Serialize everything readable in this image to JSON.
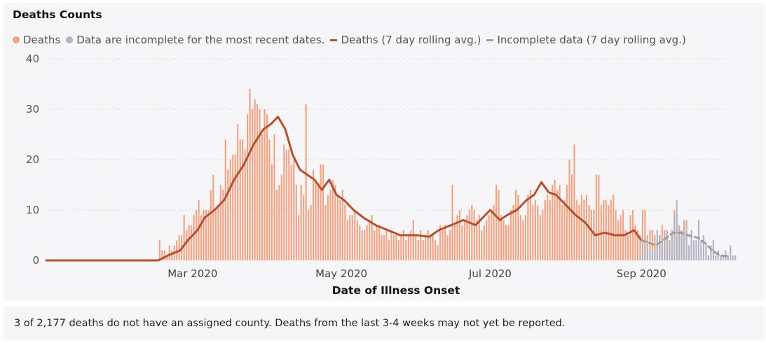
{
  "title": "Deaths Counts",
  "legend": [
    {
      "label": "Deaths",
      "color": "#f0a483",
      "kind": "dot"
    },
    {
      "label": "Data are incomplete for the most recent dates.",
      "color": "#b3b5c6",
      "kind": "dot"
    },
    {
      "label": "Deaths (7 day rolling avg.)",
      "color": "#b5512f",
      "kind": "line"
    },
    {
      "label": "Incomplete data (7 day rolling avg.)",
      "color": "#9e9e9e",
      "kind": "line"
    }
  ],
  "note": "3 of 2,177 deaths do not have an assigned county. Deaths from the last 3-4 weeks may not yet be reported.",
  "chart_data": {
    "type": "bar",
    "xlabel": "Date of Illness Onset",
    "ylabel": "",
    "ylim": [
      0,
      40
    ],
    "yticks": [
      0,
      10,
      20,
      30,
      40
    ],
    "x_start": "2020-01-01",
    "x_end": "2020-10-08",
    "xticks": [
      {
        "date": "2020-03-01",
        "label": "Mar 2020"
      },
      {
        "date": "2020-05-01",
        "label": "May 2020"
      },
      {
        "date": "2020-07-01",
        "label": "Jul 2020"
      },
      {
        "date": "2020-09-01",
        "label": "Sep 2020"
      }
    ],
    "grid": true,
    "legend_position": "top-left",
    "series": [
      {
        "name": "Deaths",
        "color": "#f0a483",
        "start_date": "2020-02-16",
        "values": [
          4,
          2,
          2,
          1,
          3,
          2,
          3,
          4,
          5,
          5,
          9,
          6,
          7,
          7,
          9,
          10,
          12,
          9,
          10,
          10,
          10,
          14,
          17,
          10,
          11,
          15,
          14,
          24,
          18,
          20,
          21,
          21,
          27,
          24,
          24,
          22,
          29,
          34,
          30,
          32,
          31,
          30,
          25,
          30,
          29,
          24,
          19,
          25,
          14,
          15,
          17,
          23,
          22,
          22,
          19,
          20,
          15,
          9,
          15,
          13,
          31,
          10,
          11,
          18,
          16,
          15,
          19,
          19,
          11,
          13,
          14,
          16,
          15,
          13,
          12,
          14,
          11,
          8,
          9,
          9,
          10,
          8,
          7,
          6,
          6,
          7,
          8,
          9,
          6,
          7,
          7,
          5,
          5,
          6,
          4,
          6,
          5,
          5,
          4,
          5,
          6,
          4,
          5,
          6,
          8,
          5,
          4,
          6,
          4,
          5,
          6,
          5,
          5,
          4,
          3,
          7,
          6,
          7,
          5,
          6,
          15,
          7,
          9,
          10,
          7,
          8,
          9,
          10,
          11,
          10,
          8,
          9,
          6,
          7,
          8,
          9,
          10,
          11,
          15,
          14,
          9,
          8,
          7,
          7,
          10,
          11,
          14,
          13,
          9,
          8,
          9,
          13,
          14,
          11,
          12,
          11,
          9,
          10,
          12,
          13,
          12,
          15,
          16,
          14,
          15,
          11,
          12,
          15,
          20,
          17,
          23,
          12,
          11,
          13,
          12,
          13,
          11,
          10,
          10,
          17,
          17,
          11,
          12,
          12,
          11,
          12,
          13,
          10,
          8,
          9,
          10,
          6,
          5,
          9,
          10,
          7,
          6,
          5,
          10,
          10,
          5,
          6,
          6,
          5,
          4,
          5,
          7,
          6,
          6,
          4,
          6,
          10,
          9,
          7,
          6,
          5,
          8
        ]
      },
      {
        "name": "Data are incomplete for the most recent dates.",
        "color": "#b3b5c6",
        "start_date": "2020-09-01",
        "values": [
          3,
          5,
          2,
          2,
          2,
          2,
          6,
          5,
          3,
          5,
          6,
          4,
          5,
          9,
          12,
          6,
          5,
          8,
          6,
          3,
          6,
          4,
          4,
          8,
          4,
          5,
          3,
          1,
          3,
          4,
          1,
          2,
          1,
          1,
          2,
          1,
          3,
          1,
          1
        ]
      },
      {
        "name": "Deaths (7 day rolling avg.)",
        "color": "#b5512f",
        "type": "line",
        "points": [
          [
            "2020-01-01",
            0
          ],
          [
            "2020-02-16",
            0
          ],
          [
            "2020-02-20",
            1
          ],
          [
            "2020-02-25",
            2
          ],
          [
            "2020-02-28",
            4
          ],
          [
            "2020-03-03",
            6
          ],
          [
            "2020-03-06",
            8.5
          ],
          [
            "2020-03-10",
            10
          ],
          [
            "2020-03-14",
            12
          ],
          [
            "2020-03-18",
            16
          ],
          [
            "2020-03-22",
            19
          ],
          [
            "2020-03-26",
            23
          ],
          [
            "2020-03-30",
            26
          ],
          [
            "2020-04-02",
            27
          ],
          [
            "2020-04-05",
            28.5
          ],
          [
            "2020-04-08",
            26
          ],
          [
            "2020-04-11",
            21
          ],
          [
            "2020-04-14",
            18
          ],
          [
            "2020-04-17",
            17
          ],
          [
            "2020-04-20",
            16
          ],
          [
            "2020-04-23",
            14
          ],
          [
            "2020-04-26",
            16
          ],
          [
            "2020-04-29",
            13
          ],
          [
            "2020-05-02",
            12
          ],
          [
            "2020-05-06",
            10
          ],
          [
            "2020-05-10",
            8.5
          ],
          [
            "2020-05-15",
            7
          ],
          [
            "2020-05-20",
            6
          ],
          [
            "2020-05-25",
            5
          ],
          [
            "2020-06-01",
            5
          ],
          [
            "2020-06-06",
            4.7
          ],
          [
            "2020-06-10",
            6
          ],
          [
            "2020-06-15",
            7
          ],
          [
            "2020-06-20",
            8
          ],
          [
            "2020-06-25",
            7
          ],
          [
            "2020-07-01",
            10
          ],
          [
            "2020-07-05",
            8
          ],
          [
            "2020-07-08",
            9
          ],
          [
            "2020-07-12",
            10
          ],
          [
            "2020-07-16",
            12
          ],
          [
            "2020-07-19",
            13
          ],
          [
            "2020-07-22",
            15.5
          ],
          [
            "2020-07-25",
            13.5
          ],
          [
            "2020-07-28",
            13
          ],
          [
            "2020-08-01",
            11
          ],
          [
            "2020-08-05",
            9
          ],
          [
            "2020-08-09",
            7.5
          ],
          [
            "2020-08-13",
            5
          ],
          [
            "2020-08-17",
            5.5
          ],
          [
            "2020-08-21",
            5
          ],
          [
            "2020-08-25",
            5
          ],
          [
            "2020-08-29",
            6
          ],
          [
            "2020-09-01",
            4
          ]
        ]
      },
      {
        "name": "Incomplete data (7 day rolling avg.)",
        "color": "#9e9e9e",
        "type": "line",
        "dashed": true,
        "points": [
          [
            "2020-09-01",
            4
          ],
          [
            "2020-09-04",
            3.5
          ],
          [
            "2020-09-07",
            3
          ],
          [
            "2020-09-10",
            4
          ],
          [
            "2020-09-14",
            5.5
          ],
          [
            "2020-09-17",
            5.5
          ],
          [
            "2020-09-20",
            5
          ],
          [
            "2020-09-24",
            4.5
          ],
          [
            "2020-09-27",
            3.5
          ],
          [
            "2020-09-30",
            2
          ],
          [
            "2020-10-03",
            1
          ],
          [
            "2020-10-07",
            0.8
          ]
        ]
      }
    ]
  }
}
